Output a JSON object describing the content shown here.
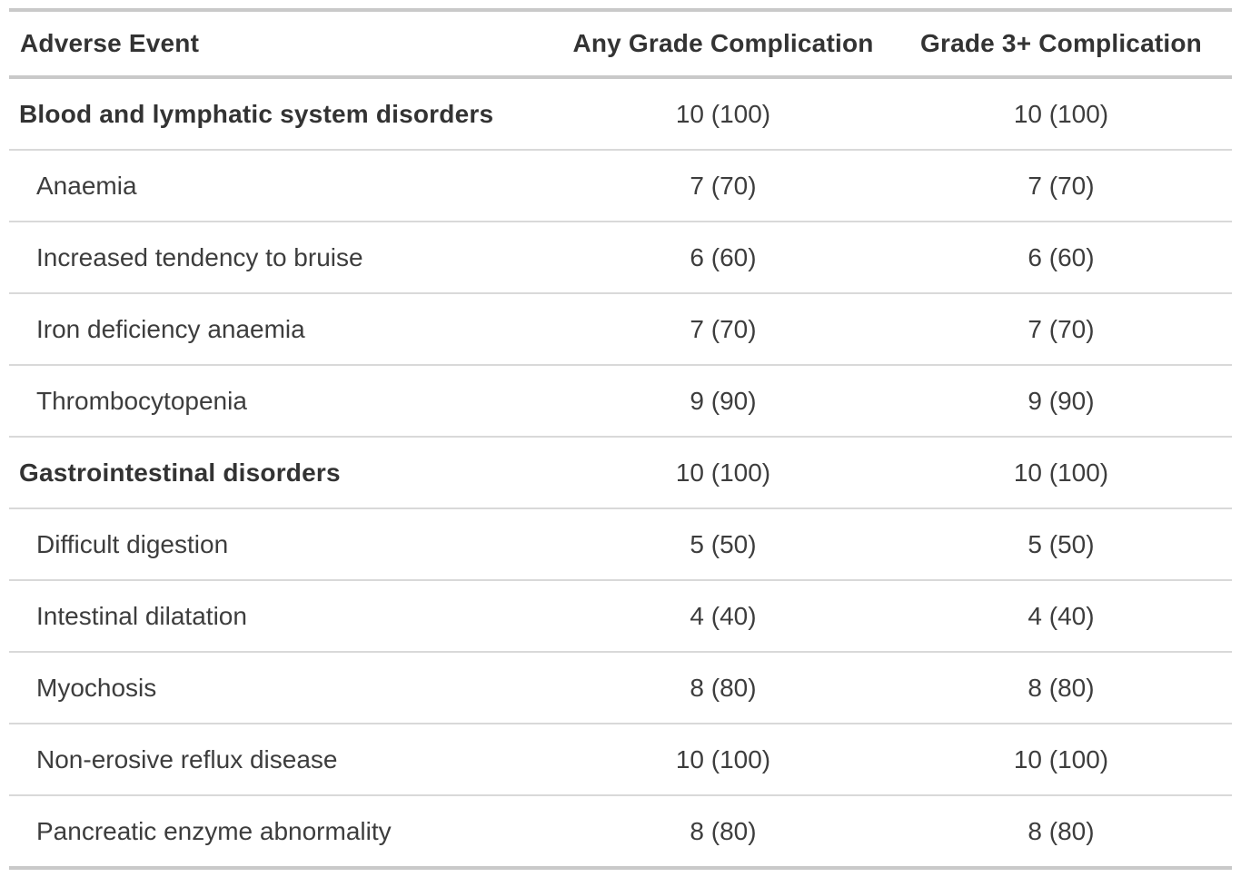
{
  "chart_data": {
    "type": "table",
    "columns": [
      "Adverse Event",
      "Any Grade Complication",
      "Grade 3+ Complication"
    ],
    "rows": [
      {
        "adverse_event": "Blood and lymphatic system disorders",
        "is_category": true,
        "any_grade": "10 (100)",
        "grade_3_plus": "10 (100)"
      },
      {
        "adverse_event": "Anaemia",
        "is_category": false,
        "any_grade": "7 (70)",
        "grade_3_plus": "7 (70)"
      },
      {
        "adverse_event": "Increased tendency to bruise",
        "is_category": false,
        "any_grade": "6 (60)",
        "grade_3_plus": "6 (60)"
      },
      {
        "adverse_event": "Iron deficiency anaemia",
        "is_category": false,
        "any_grade": "7 (70)",
        "grade_3_plus": "7 (70)"
      },
      {
        "adverse_event": "Thrombocytopenia",
        "is_category": false,
        "any_grade": "9 (90)",
        "grade_3_plus": "9 (90)"
      },
      {
        "adverse_event": "Gastrointestinal disorders",
        "is_category": true,
        "any_grade": "10 (100)",
        "grade_3_plus": "10 (100)"
      },
      {
        "adverse_event": "Difficult digestion",
        "is_category": false,
        "any_grade": "5 (50)",
        "grade_3_plus": "5 (50)"
      },
      {
        "adverse_event": "Intestinal dilatation",
        "is_category": false,
        "any_grade": "4 (40)",
        "grade_3_plus": "4 (40)"
      },
      {
        "adverse_event": "Myochosis",
        "is_category": false,
        "any_grade": "8 (80)",
        "grade_3_plus": "8 (80)"
      },
      {
        "adverse_event": "Non-erosive reflux disease",
        "is_category": false,
        "any_grade": "10 (100)",
        "grade_3_plus": "10 (100)"
      },
      {
        "adverse_event": "Pancreatic enzyme abnormality",
        "is_category": false,
        "any_grade": "8 (80)",
        "grade_3_plus": "8 (80)"
      }
    ],
    "layout": {
      "grid": "horizontal-rules-only",
      "numeric_columns_alignment": "center"
    }
  },
  "colors": {
    "background": "#ffffff",
    "heavy_rule": "#c9c9c9",
    "row_rule": "#d9d9d9",
    "header_text": "#333333",
    "body_text": "#3d3d3d"
  }
}
